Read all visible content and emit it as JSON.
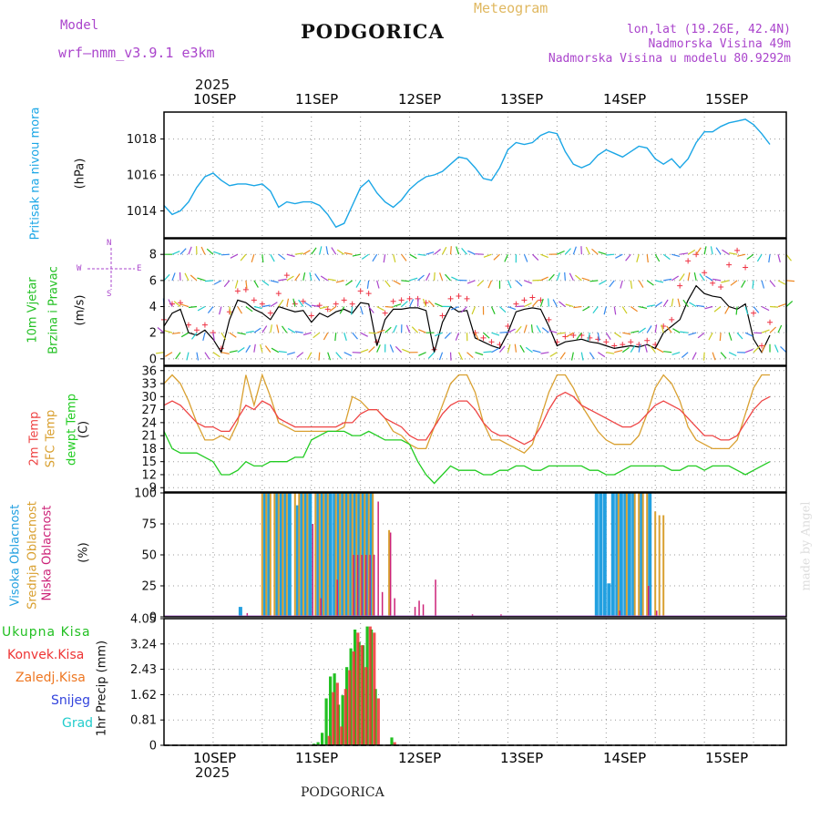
{
  "header": {
    "model_label": "Model",
    "model_name": "wrf—nmm_v3.9.1  e3km",
    "title": "PODGORICA",
    "meteogram": "Meteogram",
    "lonlat": "lon,lat (19.26E, 42.4N)",
    "elevation": "Nadmorska Visina 49m",
    "model_elevation": "Nadmorska Visina u modelu 80.9292m",
    "footer_title": "PODGORICA",
    "watermark": "made by Angel",
    "year_top": "2025",
    "year_bottom": "2025"
  },
  "colors": {
    "pressure": "#1aa6e6",
    "wind_label": "#22c022",
    "wind_line": "#000000",
    "gust": "#ee3344",
    "temp2m": "#ee4444",
    "sfc": "#d9a030",
    "dewpt": "#22cc22",
    "cloud_high": "#22a0e0",
    "cloud_mid": "#d9a030",
    "cloud_low": "#cc2277",
    "precip_total": "#22c022",
    "precip_conv": "#ee3333",
    "precip_freez": "#ee7722",
    "precip_snow": "#3344dd",
    "precip_hail": "#22cccc",
    "compass": "#aa44cc",
    "title_color": "#111111",
    "meteogram_color": "#e0b860",
    "model_color": "#aa44cc"
  },
  "axis": {
    "days": [
      "10SEP",
      "11SEP",
      "12SEP",
      "13SEP",
      "14SEP",
      "15SEP"
    ],
    "time_range_hours": [
      -12,
      140
    ]
  },
  "panels": {
    "pressure": {
      "label1": "Pritisak na nivou mora",
      "label2": "(hPa)"
    },
    "wind": {
      "label1": "10m Vjetar",
      "label2": "Brzina i Pravac",
      "label3": "(m/s)",
      "compass_n": "N",
      "compass_s": "S",
      "compass_w": "W",
      "compass_e": "E"
    },
    "temp": {
      "label1": "2m Temp",
      "label2": "SFC Temp",
      "label3": "dewpt Temp",
      "label4": "(C)"
    },
    "cloud": {
      "label1": "Visoka Oblacnost",
      "label2": "Srednja Oblacnost",
      "label3": "Niska Oblacnost",
      "label4": "(%)"
    },
    "precip": {
      "label1": "Ukupna Kisa",
      "label2": "Konvek.Kisa",
      "label3": "Zaledj.Kisa",
      "label4": "Snijeg",
      "label5": "Grad",
      "label6": "1hr Precip (mm)"
    }
  },
  "chart_data": [
    {
      "type": "line",
      "title": "Pritisak na nivou mora",
      "ylabel": "(hPa)",
      "ylim": [
        1012.5,
        1019.5
      ],
      "yticks": [
        "1014",
        "1016",
        "1018"
      ],
      "x_hours": [
        -12,
        -10,
        -8,
        -6,
        -4,
        -2,
        0,
        2,
        4,
        6,
        8,
        10,
        12,
        14,
        16,
        18,
        20,
        22,
        24,
        26,
        28,
        30,
        32,
        34,
        36,
        38,
        40,
        42,
        44,
        46,
        48,
        50,
        52,
        54,
        56,
        58,
        60,
        62,
        64,
        66,
        68,
        70,
        72,
        74,
        76,
        78,
        80,
        82,
        84,
        86,
        88,
        90,
        92,
        94,
        96,
        98,
        100,
        102,
        104,
        106,
        108,
        110,
        112,
        114,
        116,
        118,
        120,
        122,
        124,
        126,
        128,
        130,
        132,
        134,
        136,
        138,
        140
      ],
      "series": [
        {
          "name": "Pritisak",
          "values": [
            1014.3,
            1013.8,
            1014.0,
            1014.5,
            1015.3,
            1015.9,
            1016.1,
            1015.7,
            1015.4,
            1015.5,
            1015.5,
            1015.4,
            1015.5,
            1015.1,
            1014.2,
            1014.5,
            1014.4,
            1014.5,
            1014.5,
            1014.3,
            1013.8,
            1013.1,
            1013.3,
            1014.3,
            1015.3,
            1015.7,
            1015.0,
            1014.5,
            1014.2,
            1014.6,
            1015.2,
            1015.6,
            1015.9,
            1016.0,
            1016.2,
            1016.6,
            1017.0,
            1016.9,
            1016.4,
            1015.8,
            1015.7,
            1016.4,
            1017.4,
            1017.8,
            1017.7,
            1017.8,
            1018.2,
            1018.4,
            1018.3,
            1017.3,
            1016.6,
            1016.4,
            1016.6,
            1017.1,
            1017.4,
            1017.2,
            1017.0,
            1017.3,
            1017.6,
            1017.5,
            1016.9,
            1016.6,
            1016.9,
            1016.4,
            1016.9,
            1017.8,
            1018.4,
            1018.4,
            1018.7,
            1018.9,
            1019.0,
            1019.1,
            1018.8,
            1018.3,
            1017.7
          ]
        }
      ]
    },
    {
      "type": "line",
      "title": "10m Vjetar Brzina i Pravac",
      "ylabel": "(m/s)",
      "ylim": [
        -0.5,
        9.2
      ],
      "yticks": [
        "0",
        "2",
        "4",
        "6",
        "8"
      ],
      "x_hours": [
        -12,
        -10,
        -8,
        -6,
        -4,
        -2,
        0,
        2,
        4,
        6,
        8,
        10,
        12,
        14,
        16,
        18,
        20,
        22,
        24,
        26,
        28,
        30,
        32,
        34,
        36,
        38,
        40,
        42,
        44,
        46,
        48,
        50,
        52,
        54,
        56,
        58,
        60,
        62,
        64,
        66,
        68,
        70,
        72,
        74,
        76,
        78,
        80,
        82,
        84,
        86,
        88,
        90,
        92,
        94,
        96,
        98,
        100,
        102,
        104,
        106,
        108,
        110,
        112,
        114,
        116,
        118,
        120,
        122,
        124,
        126,
        128,
        130,
        132,
        134,
        136,
        138,
        140
      ],
      "series": [
        {
          "name": "Brzina",
          "values": [
            2.5,
            3.5,
            3.8,
            2.0,
            1.8,
            2.2,
            1.5,
            0.5,
            3.0,
            4.5,
            4.3,
            3.8,
            3.5,
            3.0,
            4.0,
            3.8,
            3.6,
            3.7,
            2.8,
            3.5,
            3.2,
            3.6,
            3.8,
            3.5,
            4.3,
            4.2,
            1.0,
            3.0,
            3.8,
            3.8,
            3.9,
            3.9,
            3.7,
            0.5,
            2.8,
            4.0,
            3.6,
            3.7,
            1.6,
            1.3,
            1.0,
            0.8,
            2.0,
            3.6,
            3.8,
            3.9,
            3.8,
            2.5,
            1.0,
            1.3,
            1.4,
            1.5,
            1.3,
            1.2,
            1.0,
            0.8,
            0.9,
            1.0,
            0.9,
            1.1,
            0.8,
            2.0,
            2.5,
            3.0,
            4.5,
            5.6,
            5.0,
            4.8,
            4.7,
            4.0,
            3.8,
            4.2,
            1.5,
            0.5,
            1.8
          ]
        },
        {
          "name": "Udari",
          "values": [
            3.0,
            4.2,
            4.3,
            2.6,
            2.2,
            2.6,
            2.0,
            0.8,
            3.6,
            5.2,
            5.3,
            4.5,
            4.2,
            3.5,
            5.0,
            6.4,
            4.2,
            4.4,
            3.3,
            4.1,
            3.8,
            4.2,
            4.5,
            4.2,
            5.2,
            5.0,
            1.3,
            3.5,
            4.4,
            4.5,
            4.6,
            4.6,
            4.3,
            0.7,
            3.3,
            4.6,
            4.8,
            4.6,
            2.0,
            1.6,
            1.3,
            1.1,
            2.5,
            4.2,
            4.5,
            4.7,
            4.5,
            3.0,
            1.3,
            1.7,
            1.8,
            1.8,
            1.6,
            1.5,
            1.3,
            1.0,
            1.1,
            1.3,
            1.1,
            1.4,
            1.1,
            2.5,
            3.0,
            5.6,
            7.5,
            8.0,
            6.6,
            5.8,
            5.5,
            7.2,
            8.3,
            7.0,
            3.5,
            1.0,
            2.8
          ]
        }
      ]
    },
    {
      "type": "line",
      "title": "2m Temp / SFC Temp / dewpt Temp",
      "ylabel": "(C)",
      "ylim": [
        8,
        37
      ],
      "yticks": [
        "9",
        "12",
        "15",
        "18",
        "21",
        "24",
        "27",
        "30",
        "33",
        "36"
      ],
      "x_hours": [
        -12,
        -10,
        -8,
        -6,
        -4,
        -2,
        0,
        2,
        4,
        6,
        8,
        10,
        12,
        14,
        16,
        18,
        20,
        22,
        24,
        26,
        28,
        30,
        32,
        34,
        36,
        38,
        40,
        42,
        44,
        46,
        48,
        50,
        52,
        54,
        56,
        58,
        60,
        62,
        64,
        66,
        68,
        70,
        72,
        74,
        76,
        78,
        80,
        82,
        84,
        86,
        88,
        90,
        92,
        94,
        96,
        98,
        100,
        102,
        104,
        106,
        108,
        110,
        112,
        114,
        116,
        118,
        120,
        122,
        124,
        126,
        128,
        130,
        132,
        134,
        136,
        138,
        140
      ],
      "series": [
        {
          "name": "2m Temp",
          "values": [
            28,
            29,
            28,
            26,
            24,
            23,
            23,
            22,
            22,
            25,
            28,
            27,
            29,
            28,
            25,
            24,
            23,
            23,
            23,
            23,
            23,
            23,
            24,
            24,
            26,
            27,
            27,
            25,
            24,
            23,
            21,
            20,
            20,
            23,
            26,
            28,
            29,
            29,
            27,
            24,
            22,
            21,
            21,
            20,
            19,
            20,
            23,
            27,
            30,
            31,
            30,
            28,
            27,
            26,
            25,
            24,
            23,
            23,
            24,
            26,
            28,
            29,
            28,
            27,
            25,
            23,
            21,
            21,
            20,
            20,
            21,
            24,
            27,
            29,
            30
          ]
        },
        {
          "name": "SFC Temp",
          "values": [
            33,
            35,
            33,
            29,
            24,
            20,
            20,
            21,
            20,
            24,
            35,
            28,
            35,
            30,
            24,
            23,
            22,
            22,
            22,
            22,
            22,
            22,
            23,
            30,
            29,
            27,
            27,
            25,
            22,
            21,
            19,
            18,
            18,
            23,
            28,
            33,
            35,
            35,
            31,
            24,
            20,
            20,
            19,
            18,
            17,
            19,
            25,
            31,
            35,
            35,
            32,
            28,
            25,
            22,
            20,
            19,
            19,
            19,
            21,
            26,
            32,
            35,
            33,
            29,
            23,
            20,
            19,
            18,
            18,
            18,
            20,
            26,
            32,
            35,
            35
          ]
        },
        {
          "name": "dewpt Temp",
          "values": [
            22,
            18,
            17,
            17,
            17,
            16,
            15,
            12,
            12,
            13,
            15,
            14,
            14,
            15,
            15,
            15,
            16,
            16,
            20,
            21,
            22,
            22,
            22,
            21,
            21,
            22,
            21,
            20,
            20,
            20,
            19,
            15,
            12,
            10,
            12,
            14,
            13,
            13,
            13,
            12,
            12,
            13,
            13,
            14,
            14,
            13,
            13,
            14,
            14,
            14,
            14,
            14,
            13,
            13,
            12,
            12,
            13,
            14,
            14,
            14,
            14,
            14,
            13,
            13,
            14,
            14,
            13,
            14,
            14,
            14,
            13,
            12,
            13,
            14,
            15
          ]
        }
      ]
    },
    {
      "type": "bar",
      "title": "Visoka / Srednja / Niska Oblacnost",
      "ylabel": "(%)",
      "ylim": [
        0,
        100
      ],
      "yticks": [
        "0",
        "25",
        "50",
        "75",
        "100"
      ],
      "series": [
        {
          "name": "Visoka",
          "x_hours": [
            7,
            13,
            14,
            16,
            17,
            18,
            19,
            21,
            22,
            23,
            24,
            26,
            27,
            28,
            29,
            30,
            31,
            32,
            33,
            34,
            35,
            36,
            37,
            38,
            39,
            94,
            95,
            96,
            97,
            98,
            99,
            100,
            101,
            102,
            103,
            105,
            107
          ],
          "values": [
            8,
            100,
            100,
            100,
            100,
            100,
            100,
            90,
            100,
            100,
            100,
            100,
            100,
            100,
            100,
            100,
            100,
            100,
            100,
            100,
            100,
            100,
            100,
            100,
            100,
            100,
            100,
            100,
            27,
            100,
            100,
            100,
            100,
            100,
            100,
            100,
            100
          ]
        },
        {
          "name": "Srednja",
          "x_hours": [
            12,
            13,
            14,
            15,
            16,
            17,
            18,
            20,
            21,
            22,
            23,
            25,
            26,
            27,
            28,
            30,
            31,
            32,
            33,
            34,
            35,
            36,
            37,
            38,
            39,
            43,
            99,
            101,
            103,
            104,
            105,
            106,
            108,
            109,
            110
          ],
          "values": [
            100,
            100,
            100,
            100,
            100,
            100,
            100,
            100,
            100,
            100,
            100,
            100,
            100,
            100,
            100,
            100,
            100,
            100,
            100,
            100,
            100,
            100,
            100,
            100,
            100,
            70,
            100,
            100,
            100,
            100,
            100,
            100,
            85,
            82,
            82
          ]
        },
        {
          "name": "Niska",
          "x_hours": [
            8,
            24,
            26,
            30,
            34,
            35,
            36,
            37,
            38,
            39,
            40,
            41,
            43,
            44,
            49,
            50,
            51,
            54,
            63,
            70,
            99,
            106,
            108
          ],
          "values": [
            3,
            75,
            15,
            30,
            50,
            50,
            50,
            50,
            50,
            50,
            93,
            20,
            68,
            15,
            8,
            13,
            10,
            30,
            2,
            2,
            5,
            25,
            5
          ]
        }
      ]
    },
    {
      "type": "bar",
      "title": "1hr Precip",
      "ylabel": "1hr Precip (mm)",
      "ylim": [
        0,
        4.05
      ],
      "yticks": [
        "0",
        "0.81",
        "1.62",
        "2.43",
        "3.24",
        "4.05"
      ],
      "series": [
        {
          "name": "Ukupna Kisa",
          "x_hours": [
            25,
            26,
            27,
            28,
            29,
            30,
            31,
            32,
            33,
            34,
            35,
            36,
            37,
            38,
            39,
            40,
            44
          ],
          "values": [
            0.05,
            0.1,
            0.4,
            1.5,
            2.2,
            2.3,
            1.3,
            1.6,
            2.5,
            3.1,
            3.7,
            3.3,
            3.2,
            3.8,
            3.7,
            1.8,
            0.25
          ]
        },
        {
          "name": "Konvek.Kisa",
          "x_hours": [
            28,
            29,
            30,
            31,
            32,
            33,
            34,
            35,
            36,
            37,
            38,
            39,
            40,
            44
          ],
          "values": [
            0.3,
            1.7,
            2.0,
            0.6,
            1.8,
            2.4,
            3.0,
            3.6,
            3.2,
            2.5,
            3.8,
            3.6,
            1.5,
            0.1
          ]
        }
      ]
    }
  ]
}
